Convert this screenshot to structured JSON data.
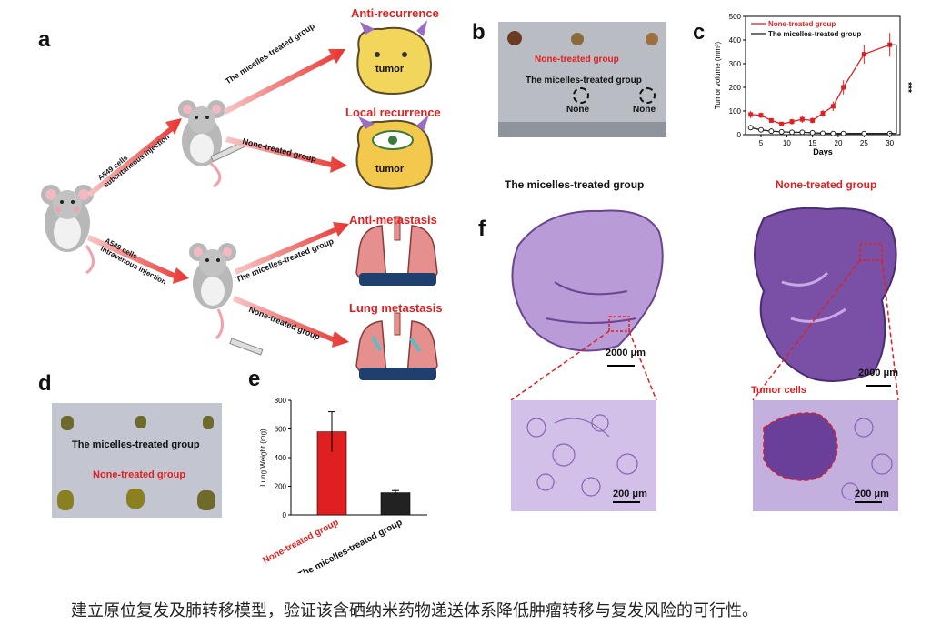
{
  "panels": {
    "a": {
      "letter": "a",
      "tumor_word": "tumor",
      "injection_sc": [
        "A549 cells",
        "subcutaneous injection"
      ],
      "injection_iv": [
        "A549 cells",
        "intravenous injection"
      ],
      "arrow_micelles_1": "The micelles-treated group",
      "arrow_none_1": "None-treated group",
      "arrow_micelles_2": "The micelles-treated group",
      "arrow_none_2": "None-treated group",
      "outcome_1": "Anti-recurrence",
      "outcome_2": "Local recurrence",
      "outcome_3": "Anti-metastasis",
      "outcome_4": "Lung metastasis"
    },
    "b": {
      "letter": "b",
      "none_treated": "None-treated group",
      "micelles": "The micelles-treated group",
      "none_1": "None",
      "none_2": "None"
    },
    "d": {
      "letter": "d",
      "micelles": "The micelles-treated group",
      "none_treated": "None-treated group"
    },
    "f": {
      "letter": "f",
      "micelles_title": "The micelles-treated group",
      "none_title": "None-treated group",
      "scale_large_1": "2000 μm",
      "scale_large_2": "2000 μm",
      "scale_small_1": "200 μm",
      "scale_small_2": "200 μm",
      "tumor_cells": "Tumor cells"
    }
  },
  "colors": {
    "accent_red": "#e02020",
    "histo_purple": "#7a4fa6",
    "lung_pink": "#e5908f"
  },
  "chart_data": [
    {
      "panel": "c",
      "type": "line",
      "xlabel": "Days",
      "ylabel": "Tumor volume (mm³)",
      "xlim": [
        2,
        32
      ],
      "ylim": [
        0,
        500
      ],
      "xticks": [
        5,
        10,
        15,
        20,
        25,
        30
      ],
      "yticks": [
        0,
        100,
        200,
        300,
        400,
        500
      ],
      "significance": "***",
      "legend_position": "top",
      "series": [
        {
          "name": "None-treated group",
          "color": "#e02020",
          "x": [
            3,
            5,
            7,
            9,
            11,
            13,
            15,
            17,
            19,
            21,
            25,
            30
          ],
          "y": [
            85,
            82,
            60,
            45,
            55,
            65,
            60,
            90,
            120,
            200,
            340,
            380
          ],
          "err": [
            15,
            12,
            10,
            8,
            12,
            15,
            12,
            15,
            20,
            30,
            40,
            50
          ]
        },
        {
          "name": "The micelles-treated group",
          "color": "#222222",
          "x": [
            3,
            5,
            7,
            9,
            11,
            13,
            15,
            17,
            19,
            21,
            25,
            30
          ],
          "y": [
            30,
            20,
            15,
            12,
            10,
            10,
            8,
            6,
            5,
            5,
            5,
            5
          ],
          "err": [
            5,
            4,
            3,
            3,
            2,
            2,
            2,
            2,
            1,
            1,
            1,
            1
          ]
        }
      ]
    },
    {
      "panel": "e",
      "type": "bar",
      "ylabel": "Lung Weight (mg)",
      "ylim": [
        0,
        800
      ],
      "yticks": [
        0,
        200,
        400,
        600,
        800
      ],
      "categories": [
        "None-treated group",
        "The micelles-treated group"
      ],
      "values": [
        580,
        155
      ],
      "err": [
        140,
        15
      ],
      "colors": [
        "#e02020",
        "#222222"
      ]
    }
  ],
  "caption": "建立原位复发及肺转移模型，验证该含硒纳米药物递送体系降低肿瘤转移与复发风险的可行性。"
}
